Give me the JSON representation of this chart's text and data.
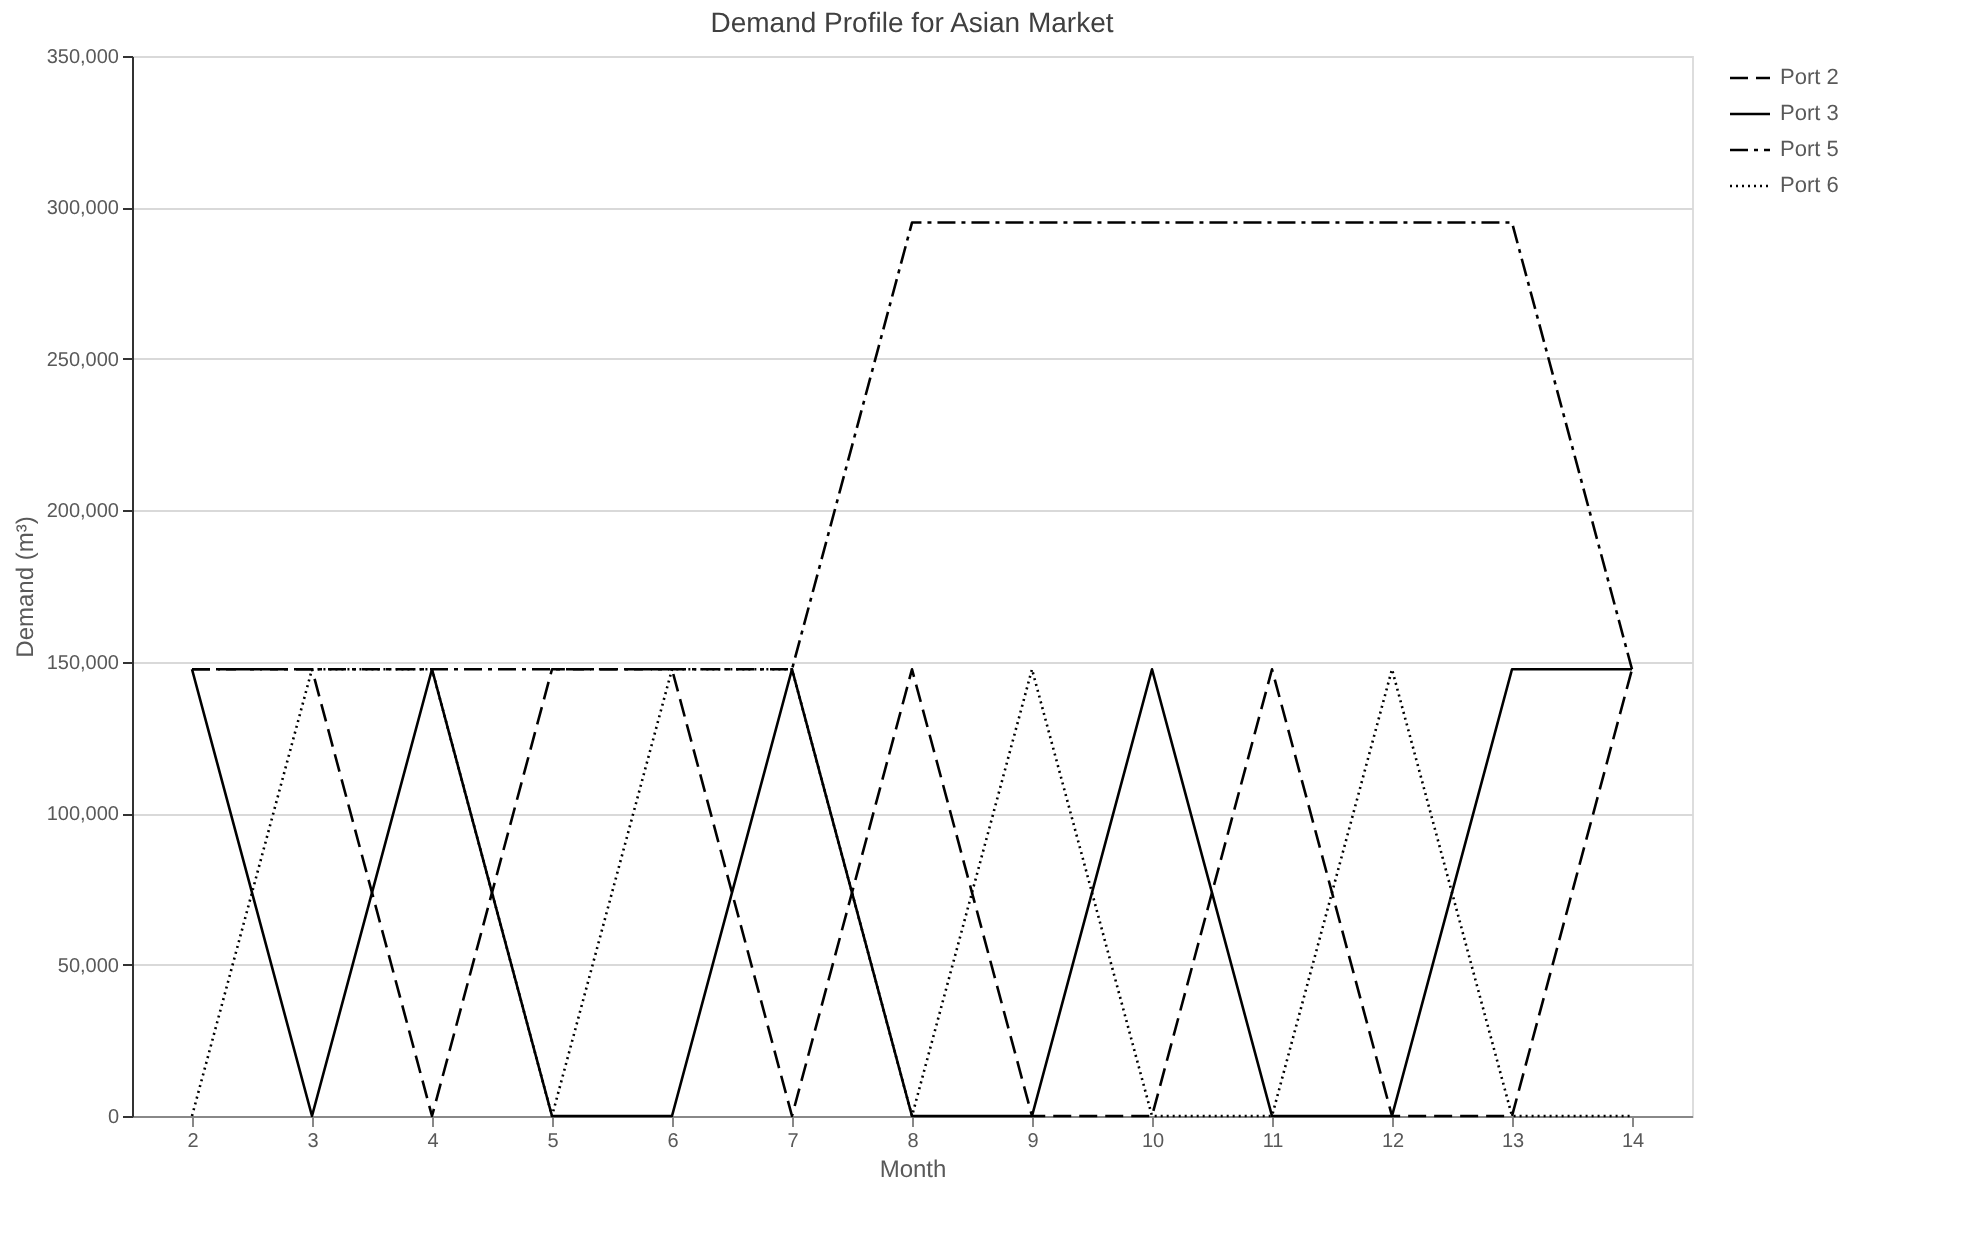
{
  "chart_data": {
    "type": "line",
    "title": "Demand Profile for Asian Market",
    "xlabel": "Month",
    "ylabel": "Demand (m³)",
    "categories": [
      "2",
      "3",
      "4",
      "5",
      "6",
      "7",
      "8",
      "9",
      "10",
      "11",
      "12",
      "13",
      "14"
    ],
    "ylim": [
      0,
      350000
    ],
    "yticks": [
      {
        "value": 0,
        "label": "0"
      },
      {
        "value": 50000,
        "label": "50,000"
      },
      {
        "value": 100000,
        "label": "100,000"
      },
      {
        "value": 150000,
        "label": "150,000"
      },
      {
        "value": 200000,
        "label": "200,000"
      },
      {
        "value": 250000,
        "label": "250,000"
      },
      {
        "value": 300000,
        "label": "300,000"
      },
      {
        "value": 350000,
        "label": "350,000"
      }
    ],
    "grid": "y",
    "legend": "right",
    "marker": "none",
    "series": [
      {
        "name": "Port 2",
        "color": "#000000",
        "line_style": "dashed",
        "values": [
          147500,
          147500,
          0,
          147500,
          147500,
          0,
          147500,
          0,
          0,
          147500,
          0,
          0,
          147500
        ]
      },
      {
        "name": "Port 3",
        "color": "#000000",
        "line_style": "solid",
        "values": [
          147500,
          0,
          147500,
          0,
          0,
          147500,
          0,
          0,
          147500,
          0,
          0,
          147500,
          147500
        ]
      },
      {
        "name": "Port 5",
        "color": "#000000",
        "line_style": "dashdot",
        "values": [
          147500,
          147500,
          147500,
          147500,
          147500,
          147500,
          295000,
          295000,
          295000,
          295000,
          295000,
          295000,
          147500
        ]
      },
      {
        "name": "Port 6",
        "color": "#000000",
        "line_style": "dotted",
        "values": [
          0,
          147500,
          147500,
          0,
          147500,
          147500,
          0,
          147500,
          0,
          0,
          147500,
          0,
          0
        ]
      }
    ]
  }
}
